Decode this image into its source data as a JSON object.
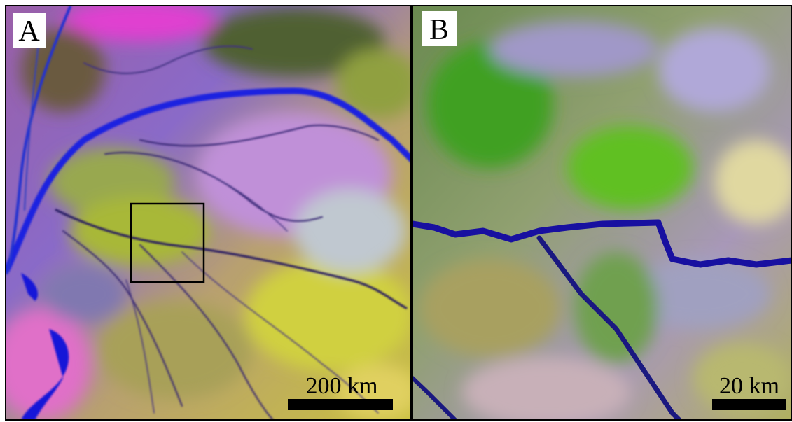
{
  "panels": [
    {
      "label": "A",
      "scale_label": "200 km"
    },
    {
      "label": "B",
      "scale_label": "20 km"
    }
  ]
}
